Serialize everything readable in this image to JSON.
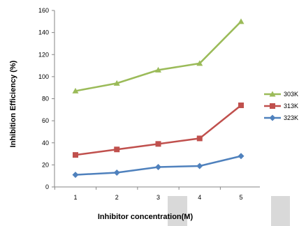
{
  "chart_data": {
    "type": "line",
    "title": "",
    "xlabel": "Inhibitor concentration(M)",
    "ylabel": "Inhibition Efficiency (%)",
    "categories": [
      "1",
      "2",
      "3",
      "4",
      "5"
    ],
    "ylim": [
      0,
      160
    ],
    "yticks": [
      "0",
      "20",
      "40",
      "60",
      "80",
      "100",
      "120",
      "140",
      "160"
    ],
    "grid": false,
    "legend_position": "right",
    "series": [
      {
        "name": "303K",
        "values": [
          87,
          94,
          106,
          112,
          150
        ],
        "color": "#9BBB59",
        "marker": "triangle"
      },
      {
        "name": "313K",
        "values": [
          29,
          34,
          39,
          44,
          74
        ],
        "color": "#C0504D",
        "marker": "square"
      },
      {
        "name": "323K",
        "values": [
          11,
          13,
          18,
          19,
          28
        ],
        "color": "#4F81BD",
        "marker": "diamond"
      }
    ]
  }
}
